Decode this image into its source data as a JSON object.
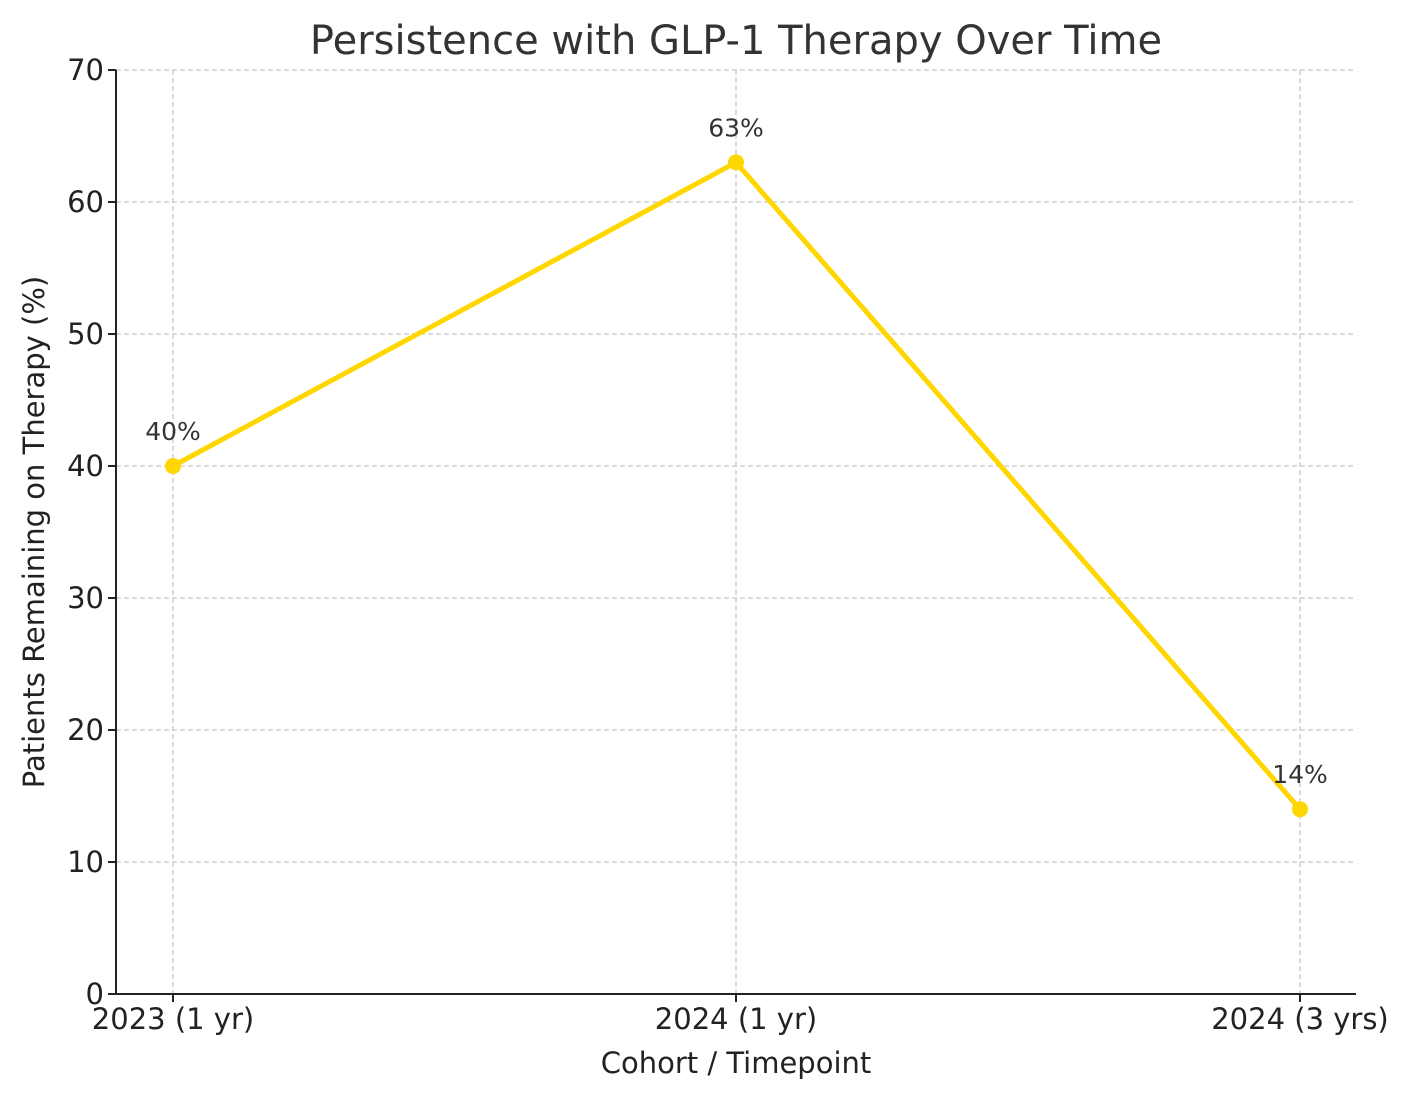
{
  "chart_data": {
    "type": "line",
    "title": "Persistence with GLP-1 Therapy Over Time",
    "xlabel": "Cohort / Timepoint",
    "ylabel": "Patients Remaining on Therapy (%)",
    "categories": [
      "2023 (1 yr)",
      "2024 (1 yr)",
      "2024 (3 yrs)"
    ],
    "series": [
      {
        "values": [
          40,
          63,
          14
        ],
        "data_labels": [
          "40%",
          "63%",
          "14%"
        ],
        "color": "#FFD700"
      }
    ],
    "ylim": [
      0,
      70
    ],
    "yticks": [
      0,
      10,
      20,
      30,
      40,
      50,
      60,
      70
    ],
    "grid": true,
    "colors": {
      "axis": "#222222",
      "grid": "#c8c8c8",
      "text": "#222222",
      "title": "#333333"
    }
  }
}
